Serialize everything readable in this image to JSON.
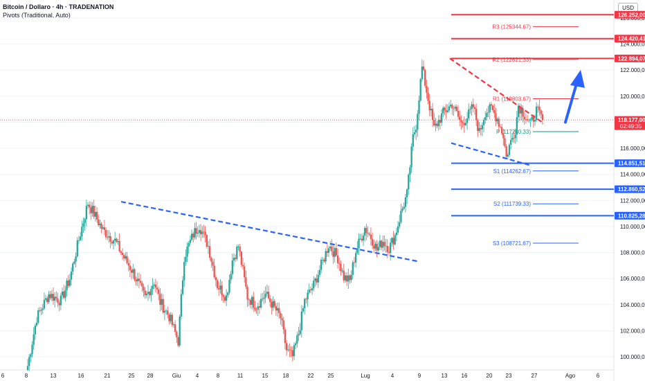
{
  "header": {
    "symbol": "Bitcoin / Dollaro · 4h · TRADENATION",
    "indicator": "Pivots (Traditional, Auto)"
  },
  "currency_button": "USD",
  "colors": {
    "up": "#26a69a",
    "down": "#ef5350",
    "pivot_resist": "#f23645",
    "pivot_support": "#2962ff",
    "pivot_p": "#089981",
    "last_price": "#f23645",
    "arrow": "#2962ff"
  },
  "chart_data": {
    "type": "candlestick",
    "timeframe": "4h",
    "y_axis": {
      "range": [
        99000,
        127200
      ],
      "ticks": [
        100000,
        102000,
        104000,
        106000,
        108000,
        110000,
        112000,
        114000,
        116000,
        118000,
        120000,
        122000,
        124000,
        126000
      ],
      "tick_labels": [
        "100.000,00",
        "102.000,00",
        "104.000,00",
        "106.000,00",
        "108.000,00",
        "110.000,00",
        "112.000,00",
        "114.000,00",
        "116.000,00",
        "118.000,00",
        "120.000,00",
        "122.000,00",
        "124.000,00",
        "126.000,00"
      ]
    },
    "x_axis": {
      "labels": [
        "6",
        "8",
        "13",
        "16",
        "21",
        "25",
        "28",
        "Giu",
        "4",
        "8",
        "11",
        "15",
        "18",
        "22",
        "25",
        "Lug",
        "4",
        "9",
        "13",
        "16",
        "20",
        "23",
        "27",
        "Ago",
        "6"
      ]
    },
    "price_path": [
      [
        0,
        99300
      ],
      [
        6,
        103000
      ],
      [
        14,
        104800
      ],
      [
        22,
        104300
      ],
      [
        28,
        106000
      ],
      [
        34,
        109000
      ],
      [
        40,
        111800
      ],
      [
        43,
        111200
      ],
      [
        50,
        109700
      ],
      [
        58,
        108900
      ],
      [
        64,
        107600
      ],
      [
        70,
        106500
      ],
      [
        78,
        104500
      ],
      [
        84,
        105800
      ],
      [
        88,
        104200
      ],
      [
        94,
        103100
      ],
      [
        100,
        101200
      ],
      [
        104,
        107700
      ],
      [
        110,
        109400
      ],
      [
        114,
        110100
      ],
      [
        120,
        108500
      ],
      [
        126,
        105500
      ],
      [
        132,
        104600
      ],
      [
        136,
        107400
      ],
      [
        140,
        108500
      ],
      [
        146,
        104600
      ],
      [
        152,
        103900
      ],
      [
        158,
        104800
      ],
      [
        162,
        104100
      ],
      [
        168,
        103000
      ],
      [
        172,
        100500
      ],
      [
        176,
        100000
      ],
      [
        180,
        101800
      ],
      [
        184,
        104300
      ],
      [
        190,
        105500
      ],
      [
        196,
        107300
      ],
      [
        200,
        108600
      ],
      [
        206,
        107600
      ],
      [
        210,
        106100
      ],
      [
        214,
        105800
      ],
      [
        218,
        108100
      ],
      [
        224,
        109900
      ],
      [
        228,
        109200
      ],
      [
        232,
        108200
      ],
      [
        236,
        108900
      ],
      [
        240,
        108300
      ],
      [
        244,
        109300
      ],
      [
        248,
        111000
      ],
      [
        252,
        112500
      ],
      [
        256,
        116800
      ],
      [
        258,
        117800
      ],
      [
        262,
        122200
      ],
      [
        266,
        119800
      ],
      [
        270,
        117500
      ],
      [
        276,
        118700
      ],
      [
        282,
        119400
      ],
      [
        288,
        117900
      ],
      [
        292,
        118400
      ],
      [
        296,
        119200
      ],
      [
        300,
        117200
      ],
      [
        304,
        118800
      ],
      [
        308,
        119000
      ],
      [
        312,
        118300
      ],
      [
        316,
        117000
      ],
      [
        318,
        115300
      ],
      [
        320,
        116200
      ],
      [
        322,
        116800
      ],
      [
        324,
        117500
      ],
      [
        326,
        119300
      ],
      [
        330,
        118600
      ],
      [
        334,
        117800
      ],
      [
        338,
        118900
      ],
      [
        340,
        118600
      ],
      [
        342,
        118177
      ]
    ],
    "last_price": 118177,
    "last_price_label": "118.177,00",
    "countdown": "02:49:35",
    "pivots": [
      {
        "name": "R3",
        "label": "R3 (125344.67)",
        "value": 125344.67
      },
      {
        "name": "R2",
        "label": "R2 (122821.33)",
        "value": 122821.33
      },
      {
        "name": "R1",
        "label": "R1 (119803.67)",
        "value": 119803.67
      },
      {
        "name": "P",
        "label": "P (117280.33)",
        "value": 117280.33
      },
      {
        "name": "S1",
        "label": "S1 (114262.67)",
        "value": 114262.67
      },
      {
        "name": "S2",
        "label": "S2 (111739.33)",
        "value": 111739.33
      },
      {
        "name": "S3",
        "label": "S3 (108721.67)",
        "value": 108721.67
      }
    ],
    "levels": [
      {
        "value": 126252,
        "label": "126.252,00",
        "color": "#f23645"
      },
      {
        "value": 124420.41,
        "label": "124.420,41",
        "color": "#f23645"
      },
      {
        "value": 122894.07,
        "label": "122.894,07",
        "color": "#f23645"
      },
      {
        "value": 114851.51,
        "label": "114.851,51",
        "color": "#2962ff"
      },
      {
        "value": 112860.52,
        "label": "112.860,52",
        "color": "#2962ff"
      },
      {
        "value": 110825.28,
        "label": "110.825,28",
        "color": "#2962ff"
      }
    ],
    "trendlines": [
      {
        "name": "wedge-upper",
        "color": "#f23645",
        "from": [
          122900
        ],
        "to": [
          117900
        ]
      },
      {
        "name": "wedge-lower",
        "color": "#2962ff",
        "from": [
          116400
        ],
        "to": [
          114700
        ]
      },
      {
        "name": "descending-resistance",
        "color": "#2962ff",
        "from": [
          111900
        ],
        "to": [
          107300
        ]
      }
    ],
    "projection_arrow": {
      "from": 118000,
      "to": 121700
    }
  }
}
